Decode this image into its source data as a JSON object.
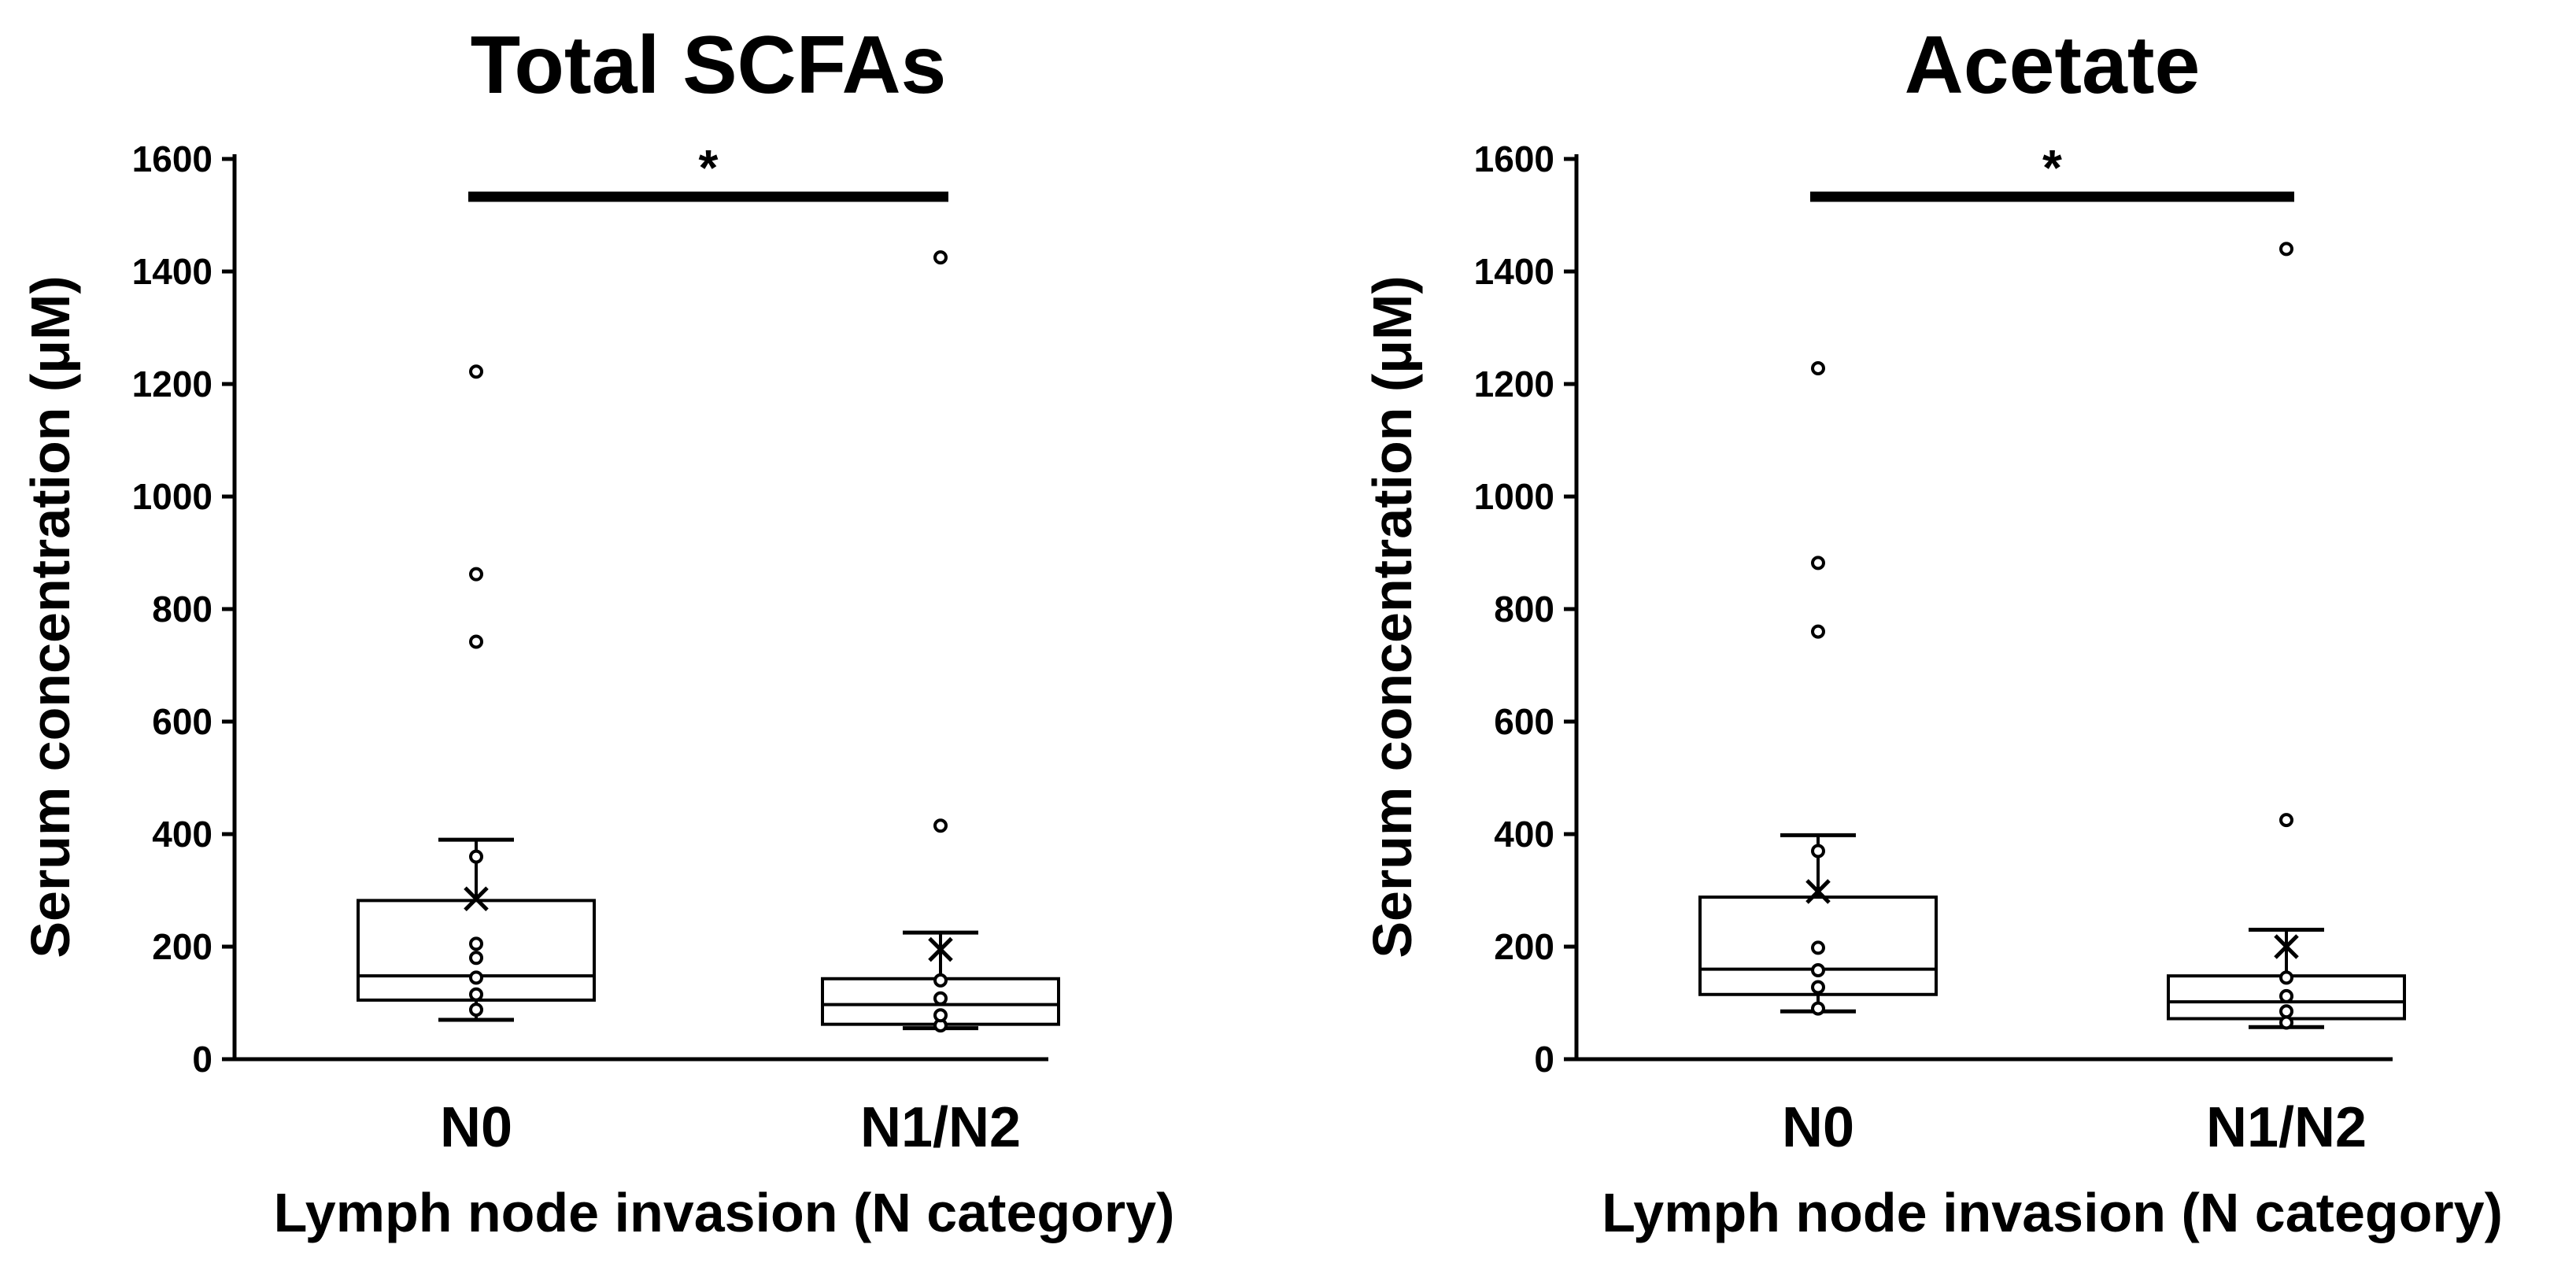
{
  "chart_data": [
    {
      "type": "box",
      "title": "Total SCFAs",
      "xlabel": "Lymph node invasion (N category)",
      "ylabel": "Serum concentration (μM)",
      "ylim": [
        0,
        1600
      ],
      "yticks": [
        "0",
        "200",
        "400",
        "600",
        "800",
        "1000",
        "1200",
        "1400",
        "1600"
      ],
      "categories": [
        "N0",
        "N1/N2"
      ],
      "boxes": [
        {
          "category": "N0",
          "whisker_low": 70,
          "q1": 105,
          "median": 148,
          "q3": 282,
          "whisker_high": 390,
          "mean": 285,
          "points": [
            88,
            115,
            145,
            180,
            205,
            360,
            742,
            862,
            1222
          ]
        },
        {
          "category": "N1/N2",
          "whisker_low": 55,
          "q1": 62,
          "median": 97,
          "q3": 143,
          "whisker_high": 225,
          "mean": 195,
          "points": [
            60,
            78,
            108,
            140,
            415,
            1425
          ]
        }
      ],
      "significance": {
        "from": "N0",
        "to": "N1/N2",
        "label": "*"
      }
    },
    {
      "type": "box",
      "title": "Acetate",
      "xlabel": "Lymph node invasion (N category)",
      "ylabel": "Serum concentration (μM)",
      "ylim": [
        0,
        1600
      ],
      "yticks": [
        "0",
        "200",
        "400",
        "600",
        "800",
        "1000",
        "1200",
        "1400",
        "1600"
      ],
      "categories": [
        "N0",
        "N1/N2"
      ],
      "boxes": [
        {
          "category": "N0",
          "whisker_low": 85,
          "q1": 115,
          "median": 160,
          "q3": 288,
          "whisker_high": 398,
          "mean": 298,
          "points": [
            90,
            128,
            158,
            198,
            370,
            760,
            882,
            1228
          ]
        },
        {
          "category": "N1/N2",
          "whisker_low": 57,
          "q1": 72,
          "median": 102,
          "q3": 148,
          "whisker_high": 230,
          "mean": 200,
          "points": [
            65,
            85,
            112,
            145,
            425,
            1440
          ]
        }
      ],
      "significance": {
        "from": "N0",
        "to": "N1/N2",
        "label": "*"
      }
    }
  ]
}
